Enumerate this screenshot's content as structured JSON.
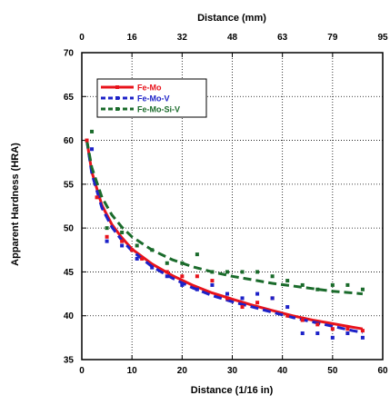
{
  "chart_data": {
    "type": "scatter",
    "title": "",
    "xlabel": "Distance (1/16 in)",
    "x2label": "Distance (mm)",
    "ylabel": "Apparent Hardness (HRA)",
    "xlim": [
      0,
      60
    ],
    "ylim": [
      35,
      70
    ],
    "x_ticks": [
      0,
      10,
      20,
      30,
      40,
      50,
      60
    ],
    "x_tick_labels": [
      "0",
      "10",
      "20",
      "30",
      "40",
      "50",
      "60"
    ],
    "x2_ticks": [
      0,
      10,
      20,
      30,
      40,
      50,
      60
    ],
    "x2_tick_labels": [
      "0",
      "16",
      "32",
      "48",
      "63",
      "79",
      "95"
    ],
    "y_ticks": [
      35,
      40,
      45,
      50,
      55,
      60,
      65,
      70
    ],
    "y_tick_labels": [
      "35",
      "40",
      "45",
      "50",
      "55",
      "60",
      "65",
      "70"
    ],
    "grid": true,
    "legend_position": "top-left",
    "series": [
      {
        "name": "Fe-Mo",
        "color": "#e8131b",
        "line_style": "solid",
        "points": [
          {
            "x": 1,
            "y": 60
          },
          {
            "x": 3,
            "y": 53.5
          },
          {
            "x": 5,
            "y": 49
          },
          {
            "x": 8,
            "y": 48.5
          },
          {
            "x": 10,
            "y": 47.5
          },
          {
            "x": 12,
            "y": 46.5
          },
          {
            "x": 17,
            "y": 45
          },
          {
            "x": 20,
            "y": 44.5
          },
          {
            "x": 23,
            "y": 44.5
          },
          {
            "x": 26,
            "y": 44
          },
          {
            "x": 29,
            "y": 42
          },
          {
            "x": 32,
            "y": 41
          },
          {
            "x": 35,
            "y": 41.5
          },
          {
            "x": 38,
            "y": 42
          },
          {
            "x": 41,
            "y": 40
          },
          {
            "x": 44,
            "y": 39.5
          },
          {
            "x": 47,
            "y": 39
          },
          {
            "x": 50,
            "y": 38.5
          },
          {
            "x": 53,
            "y": 38.5
          },
          {
            "x": 56,
            "y": 38.3
          }
        ],
        "fit": [
          {
            "x": 1,
            "y": 60
          },
          {
            "x": 2,
            "y": 56.4
          },
          {
            "x": 4,
            "y": 52.6
          },
          {
            "x": 6,
            "y": 50.4
          },
          {
            "x": 8,
            "y": 48.9
          },
          {
            "x": 10,
            "y": 47.6
          },
          {
            "x": 14,
            "y": 45.9
          },
          {
            "x": 18,
            "y": 44.6
          },
          {
            "x": 22,
            "y": 43.5
          },
          {
            "x": 26,
            "y": 42.6
          },
          {
            "x": 30,
            "y": 41.9
          },
          {
            "x": 34,
            "y": 41.2
          },
          {
            "x": 38,
            "y": 40.6
          },
          {
            "x": 42,
            "y": 40
          },
          {
            "x": 46,
            "y": 39.5
          },
          {
            "x": 50,
            "y": 39.1
          },
          {
            "x": 54,
            "y": 38.7
          },
          {
            "x": 56,
            "y": 38.5
          }
        ]
      },
      {
        "name": "Fe-Mo-V",
        "color": "#1d22c8",
        "line_style": "dashed",
        "points": [
          {
            "x": 2,
            "y": 59
          },
          {
            "x": 5,
            "y": 48.5
          },
          {
            "x": 8,
            "y": 48
          },
          {
            "x": 11,
            "y": 46.5
          },
          {
            "x": 14,
            "y": 45.5
          },
          {
            "x": 17,
            "y": 44.5
          },
          {
            "x": 20,
            "y": 43.5
          },
          {
            "x": 23,
            "y": 43
          },
          {
            "x": 26,
            "y": 43.5
          },
          {
            "x": 29,
            "y": 42.5
          },
          {
            "x": 32,
            "y": 42
          },
          {
            "x": 35,
            "y": 42.5
          },
          {
            "x": 38,
            "y": 42
          },
          {
            "x": 41,
            "y": 41
          },
          {
            "x": 44,
            "y": 38
          },
          {
            "x": 47,
            "y": 38
          },
          {
            "x": 50,
            "y": 37.5
          },
          {
            "x": 53,
            "y": 38
          },
          {
            "x": 56,
            "y": 37.5
          }
        ],
        "fit": [
          {
            "x": 1,
            "y": 60
          },
          {
            "x": 2,
            "y": 56.2
          },
          {
            "x": 4,
            "y": 52.3
          },
          {
            "x": 6,
            "y": 50.1
          },
          {
            "x": 8,
            "y": 48.6
          },
          {
            "x": 10,
            "y": 47.4
          },
          {
            "x": 14,
            "y": 45.6
          },
          {
            "x": 18,
            "y": 44.3
          },
          {
            "x": 22,
            "y": 43.2
          },
          {
            "x": 26,
            "y": 42.3
          },
          {
            "x": 30,
            "y": 41.6
          },
          {
            "x": 34,
            "y": 41
          },
          {
            "x": 38,
            "y": 40.4
          },
          {
            "x": 42,
            "y": 39.8
          },
          {
            "x": 46,
            "y": 39.3
          },
          {
            "x": 50,
            "y": 38.8
          },
          {
            "x": 54,
            "y": 38.3
          },
          {
            "x": 56,
            "y": 38.1
          }
        ]
      },
      {
        "name": "Fe-Mo-Si-V",
        "color": "#1a6b2b",
        "line_style": "dashed",
        "points": [
          {
            "x": 2,
            "y": 61
          },
          {
            "x": 5,
            "y": 50
          },
          {
            "x": 8,
            "y": 49.5
          },
          {
            "x": 11,
            "y": 48
          },
          {
            "x": 14,
            "y": 47.5
          },
          {
            "x": 17,
            "y": 46
          },
          {
            "x": 20,
            "y": 46
          },
          {
            "x": 23,
            "y": 47
          },
          {
            "x": 26,
            "y": 45
          },
          {
            "x": 29,
            "y": 45
          },
          {
            "x": 32,
            "y": 45
          },
          {
            "x": 35,
            "y": 45
          },
          {
            "x": 38,
            "y": 44.5
          },
          {
            "x": 41,
            "y": 44
          },
          {
            "x": 44,
            "y": 43.5
          },
          {
            "x": 47,
            "y": 43
          },
          {
            "x": 50,
            "y": 43.5
          },
          {
            "x": 53,
            "y": 43.5
          },
          {
            "x": 56,
            "y": 43
          }
        ],
        "fit": [
          {
            "x": 1,
            "y": 60
          },
          {
            "x": 2,
            "y": 56.9
          },
          {
            "x": 4,
            "y": 53.5
          },
          {
            "x": 6,
            "y": 51.5
          },
          {
            "x": 8,
            "y": 50.1
          },
          {
            "x": 10,
            "y": 49
          },
          {
            "x": 14,
            "y": 47.5
          },
          {
            "x": 18,
            "y": 46.4
          },
          {
            "x": 22,
            "y": 45.6
          },
          {
            "x": 26,
            "y": 45
          },
          {
            "x": 30,
            "y": 44.5
          },
          {
            "x": 34,
            "y": 44.1
          },
          {
            "x": 38,
            "y": 43.7
          },
          {
            "x": 42,
            "y": 43.4
          },
          {
            "x": 46,
            "y": 43.1
          },
          {
            "x": 50,
            "y": 42.8
          },
          {
            "x": 54,
            "y": 42.6
          },
          {
            "x": 56,
            "y": 42.5
          }
        ]
      }
    ]
  }
}
